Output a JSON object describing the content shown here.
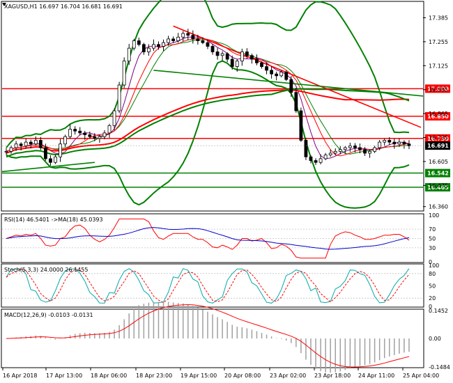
{
  "colors": {
    "candle": "#000000",
    "bollinger": "#008000",
    "ma_long": "#ff0000",
    "level_red": "#ff0000",
    "level_green": "#008000",
    "rsi": "#ff0000",
    "rsi_ma": "#0000cc",
    "stoch_main": "#00aaaa",
    "stoch_signal": "#ff0000",
    "macd_hist": "#a0a0a0",
    "macd_signal": "#ff0000"
  },
  "main": {
    "symbol_label": "XAGUSD,H1",
    "ohlc_text": "16.697 16.704 16.681 16.691",
    "current_price": "16.691",
    "ylim": [
      16.34,
      17.47
    ],
    "price_ticks": [
      "17.385",
      "17.255",
      "17.125",
      "16.995",
      "16.865",
      "16.735",
      "16.605",
      "16.475",
      "16.360"
    ],
    "levels": [
      {
        "label": "17.000",
        "value": 17.0,
        "color": "#ff0000"
      },
      {
        "label": "16.850",
        "value": 16.85,
        "color": "#ff0000"
      },
      {
        "label": "16.730",
        "value": 16.73,
        "color": "#ff0000"
      },
      {
        "label": "16.542",
        "value": 16.542,
        "color": "#008000"
      },
      {
        "label": "16.465",
        "value": 16.465,
        "color": "#008000"
      }
    ]
  },
  "rsi": {
    "label": "RSI(14) 46.5401 ->MA(18) 45.0393",
    "ticks": [
      "100",
      "70",
      "50",
      "30",
      "0"
    ]
  },
  "stoch": {
    "label": "Stoch(5,3,3) 24.0000 26.1455",
    "ticks": [
      "100",
      "80",
      "50",
      "20",
      "0"
    ]
  },
  "macd": {
    "label": "MACD(12,26,9) -0.0103 -0.0131",
    "ticks": [
      "0.1452",
      "0.00",
      "-0.1484"
    ]
  },
  "x_labels": [
    "16 Apr 2018",
    "17 Apr 13:00",
    "18 Apr 06:00",
    "18 Apr 23:00",
    "19 Apr 15:00",
    "20 Apr 08:00",
    "23 Apr 02:00",
    "23 Apr 18:00",
    "24 Apr 11:00",
    "25 Apr 04:00"
  ],
  "chart_data": {
    "type": "candlestick",
    "symbol": "XAGUSD",
    "timeframe": "H1",
    "close_series": [
      16.66,
      16.68,
      16.7,
      16.69,
      16.71,
      16.7,
      16.72,
      16.68,
      16.62,
      16.6,
      16.63,
      16.7,
      16.74,
      16.78,
      16.77,
      16.76,
      16.75,
      16.74,
      16.73,
      16.74,
      16.76,
      16.8,
      16.88,
      17.02,
      17.15,
      17.22,
      17.26,
      17.24,
      17.2,
      17.22,
      17.24,
      17.23,
      17.25,
      17.27,
      17.26,
      17.28,
      17.3,
      17.29,
      17.27,
      17.26,
      17.25,
      17.23,
      17.2,
      17.18,
      17.19,
      17.16,
      17.12,
      17.15,
      17.2,
      17.18,
      17.16,
      17.14,
      17.12,
      17.1,
      17.08,
      17.07,
      17.09,
      17.05,
      16.98,
      16.88,
      16.72,
      16.63,
      16.61,
      16.6,
      16.62,
      16.64,
      16.65,
      16.66,
      16.67,
      16.68,
      16.69,
      16.68,
      16.67,
      16.65,
      16.66,
      16.68,
      16.71,
      16.72,
      16.71,
      16.7,
      16.71,
      16.7,
      16.69
    ],
    "levels": [
      17.0,
      16.85,
      16.73,
      16.542,
      16.465
    ],
    "ylim": [
      16.34,
      17.47
    ]
  }
}
